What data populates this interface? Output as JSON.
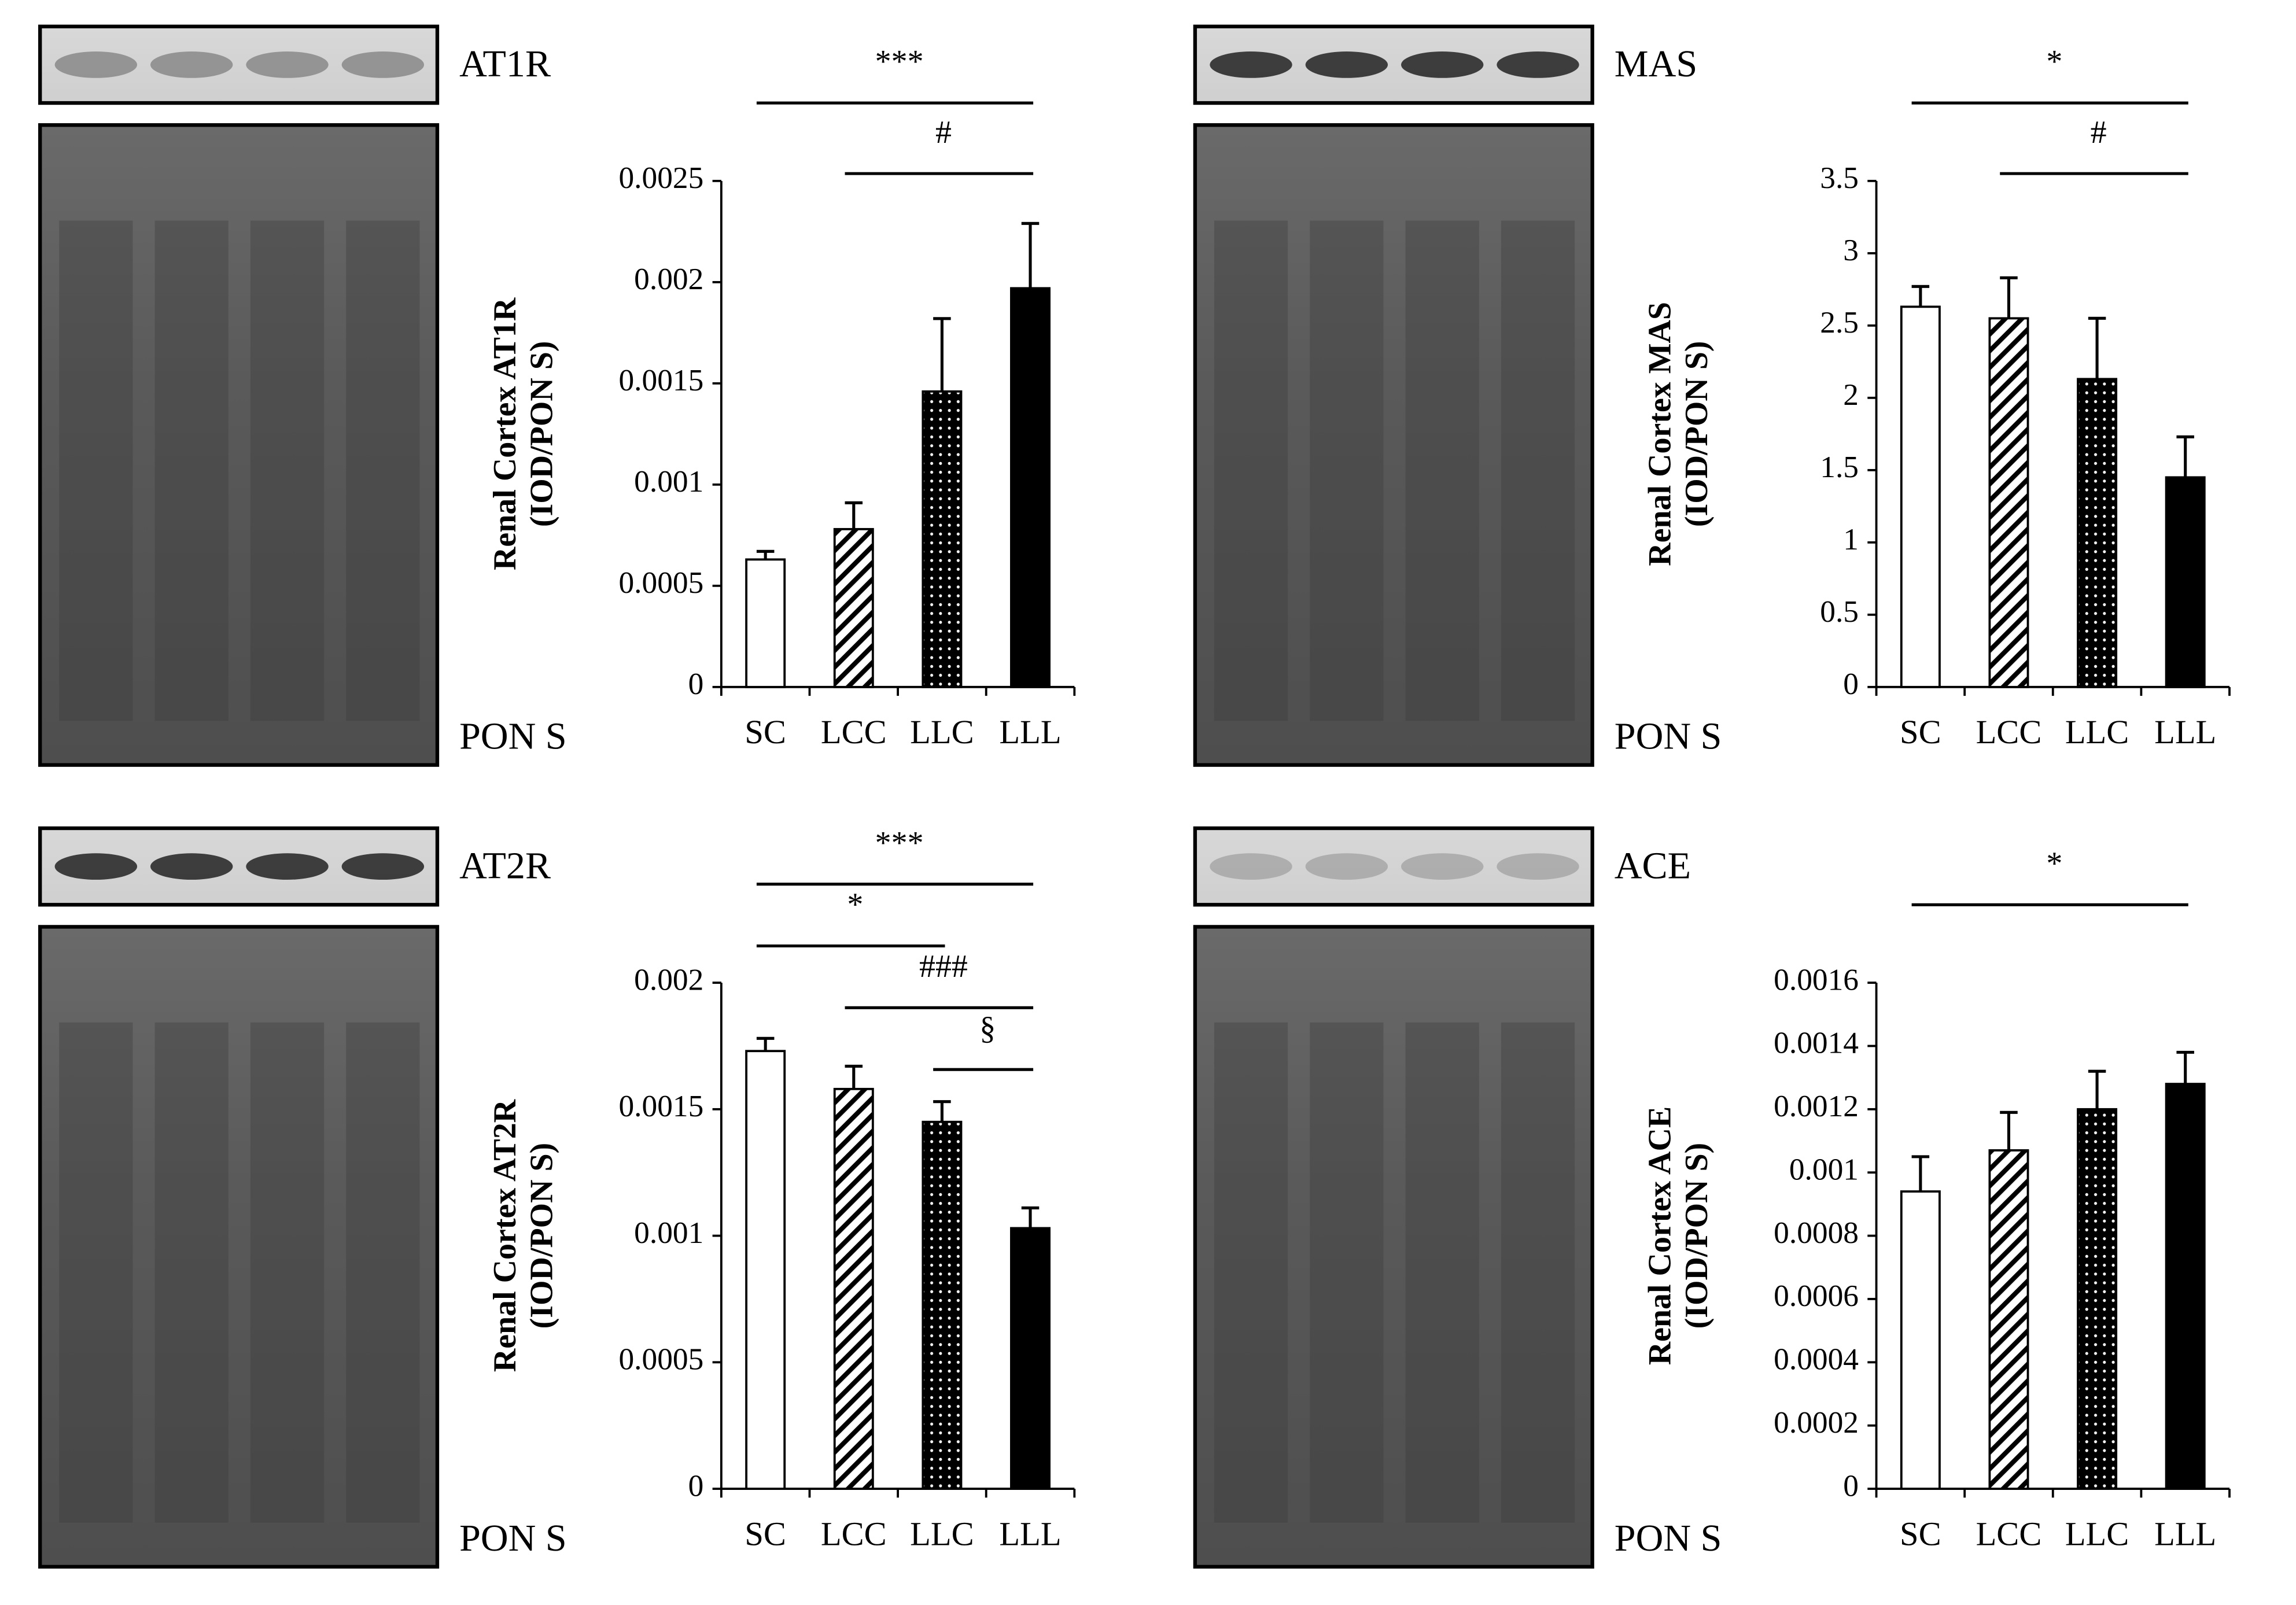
{
  "chart_data": [
    {
      "type": "bar",
      "blot_label": "AT1R",
      "loading_label": "PON S",
      "y_label": [
        "Renal Cortex AT1R",
        "(IOD/PON S)"
      ],
      "categories": [
        "SC",
        "LCC",
        "LLC",
        "LLL"
      ],
      "values": [
        0.00063,
        0.00078,
        0.00146,
        0.00197
      ],
      "errors": [
        4e-05,
        0.00013,
        0.00036,
        0.00032
      ],
      "colors": [
        "#ffffff",
        "#ffffff",
        "#000000",
        "#000000"
      ],
      "patterns": [
        "none",
        "hatch",
        "dots",
        "none"
      ],
      "ylim": [
        0,
        0.0025
      ],
      "yticks": [
        0,
        0.0005,
        0.001,
        0.0015,
        0.002,
        0.0025
      ],
      "annotations": [
        {
          "text": "***",
          "from": "SC",
          "to": "LLL"
        },
        {
          "text": "#",
          "from": "LCC",
          "to": "LLL"
        }
      ]
    },
    {
      "type": "bar",
      "blot_label": "MAS",
      "loading_label": "PON S",
      "y_label": [
        "Renal Cortex MAS",
        "(IOD/PON S)"
      ],
      "categories": [
        "SC",
        "LCC",
        "LLC",
        "LLL"
      ],
      "values": [
        2.63,
        2.55,
        2.13,
        1.45
      ],
      "errors": [
        0.14,
        0.28,
        0.42,
        0.28
      ],
      "colors": [
        "#ffffff",
        "#ffffff",
        "#000000",
        "#000000"
      ],
      "patterns": [
        "none",
        "hatch",
        "dots",
        "none"
      ],
      "ylim": [
        0,
        3.5
      ],
      "yticks": [
        0,
        0.5,
        1,
        1.5,
        2,
        2.5,
        3,
        3.5
      ],
      "annotations": [
        {
          "text": "*",
          "from": "SC",
          "to": "LLL"
        },
        {
          "text": "#",
          "from": "LCC",
          "to": "LLL"
        }
      ]
    },
    {
      "type": "bar",
      "blot_label": "AT2R",
      "loading_label": "PON S",
      "y_label": [
        "Renal Cortex AT2R",
        "(IOD/PON S)"
      ],
      "categories": [
        "SC",
        "LCC",
        "LLC",
        "LLL"
      ],
      "values": [
        0.00173,
        0.00158,
        0.00145,
        0.00103
      ],
      "errors": [
        5e-05,
        9e-05,
        8e-05,
        8e-05
      ],
      "colors": [
        "#ffffff",
        "#ffffff",
        "#000000",
        "#000000"
      ],
      "patterns": [
        "none",
        "hatch",
        "dots",
        "none"
      ],
      "ylim": [
        0,
        0.002
      ],
      "yticks": [
        0,
        0.0005,
        0.001,
        0.0015,
        0.002
      ],
      "annotations": [
        {
          "text": "***",
          "from": "SC",
          "to": "LLL"
        },
        {
          "text": "*",
          "from": "SC",
          "to": "LLC"
        },
        {
          "text": "###",
          "from": "LCC",
          "to": "LLL"
        },
        {
          "text": "§",
          "from": "LLC",
          "to": "LLL"
        }
      ]
    },
    {
      "type": "bar",
      "blot_label": "ACE",
      "loading_label": "PON S",
      "y_label": [
        "Renal Cortex ACE",
        "(IOD/PON S)"
      ],
      "categories": [
        "SC",
        "LCC",
        "LLC",
        "LLL"
      ],
      "values": [
        0.00094,
        0.00107,
        0.0012,
        0.00128
      ],
      "errors": [
        0.00011,
        0.00012,
        0.00012,
        0.0001
      ],
      "colors": [
        "#ffffff",
        "#ffffff",
        "#000000",
        "#000000"
      ],
      "patterns": [
        "none",
        "hatch",
        "dots",
        "none"
      ],
      "ylim": [
        0,
        0.0016
      ],
      "yticks": [
        0,
        0.0002,
        0.0004,
        0.0006,
        0.0008,
        0.001,
        0.0012,
        0.0014,
        0.0016
      ],
      "annotations": [
        {
          "text": "*",
          "from": "SC",
          "to": "LLL"
        }
      ]
    }
  ]
}
